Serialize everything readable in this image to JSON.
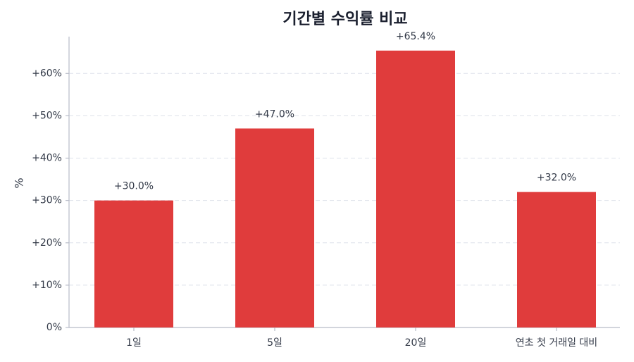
{
  "chart_data": {
    "type": "bar",
    "title": "기간별 수익률 비교",
    "y_label": "%",
    "categories": [
      "1일",
      "5일",
      "20일",
      "연초 첫 거래일 대비"
    ],
    "values": [
      30.0,
      47.0,
      65.4,
      32.0
    ],
    "value_labels": [
      "+30.0%",
      "+47.0%",
      "+65.4%",
      "+32.0%"
    ],
    "color": "#e03c3c",
    "ylim": [
      0,
      68.7
    ],
    "yticks": [
      {
        "value": 0,
        "label": "0%"
      },
      {
        "value": 10,
        "label": "+10%"
      },
      {
        "value": 20,
        "label": "+20%"
      },
      {
        "value": 30,
        "label": "+30%"
      },
      {
        "value": 40,
        "label": "+40%"
      },
      {
        "value": 50,
        "label": "+50%"
      },
      {
        "value": 60,
        "label": "+60%"
      }
    ],
    "grid": true
  }
}
